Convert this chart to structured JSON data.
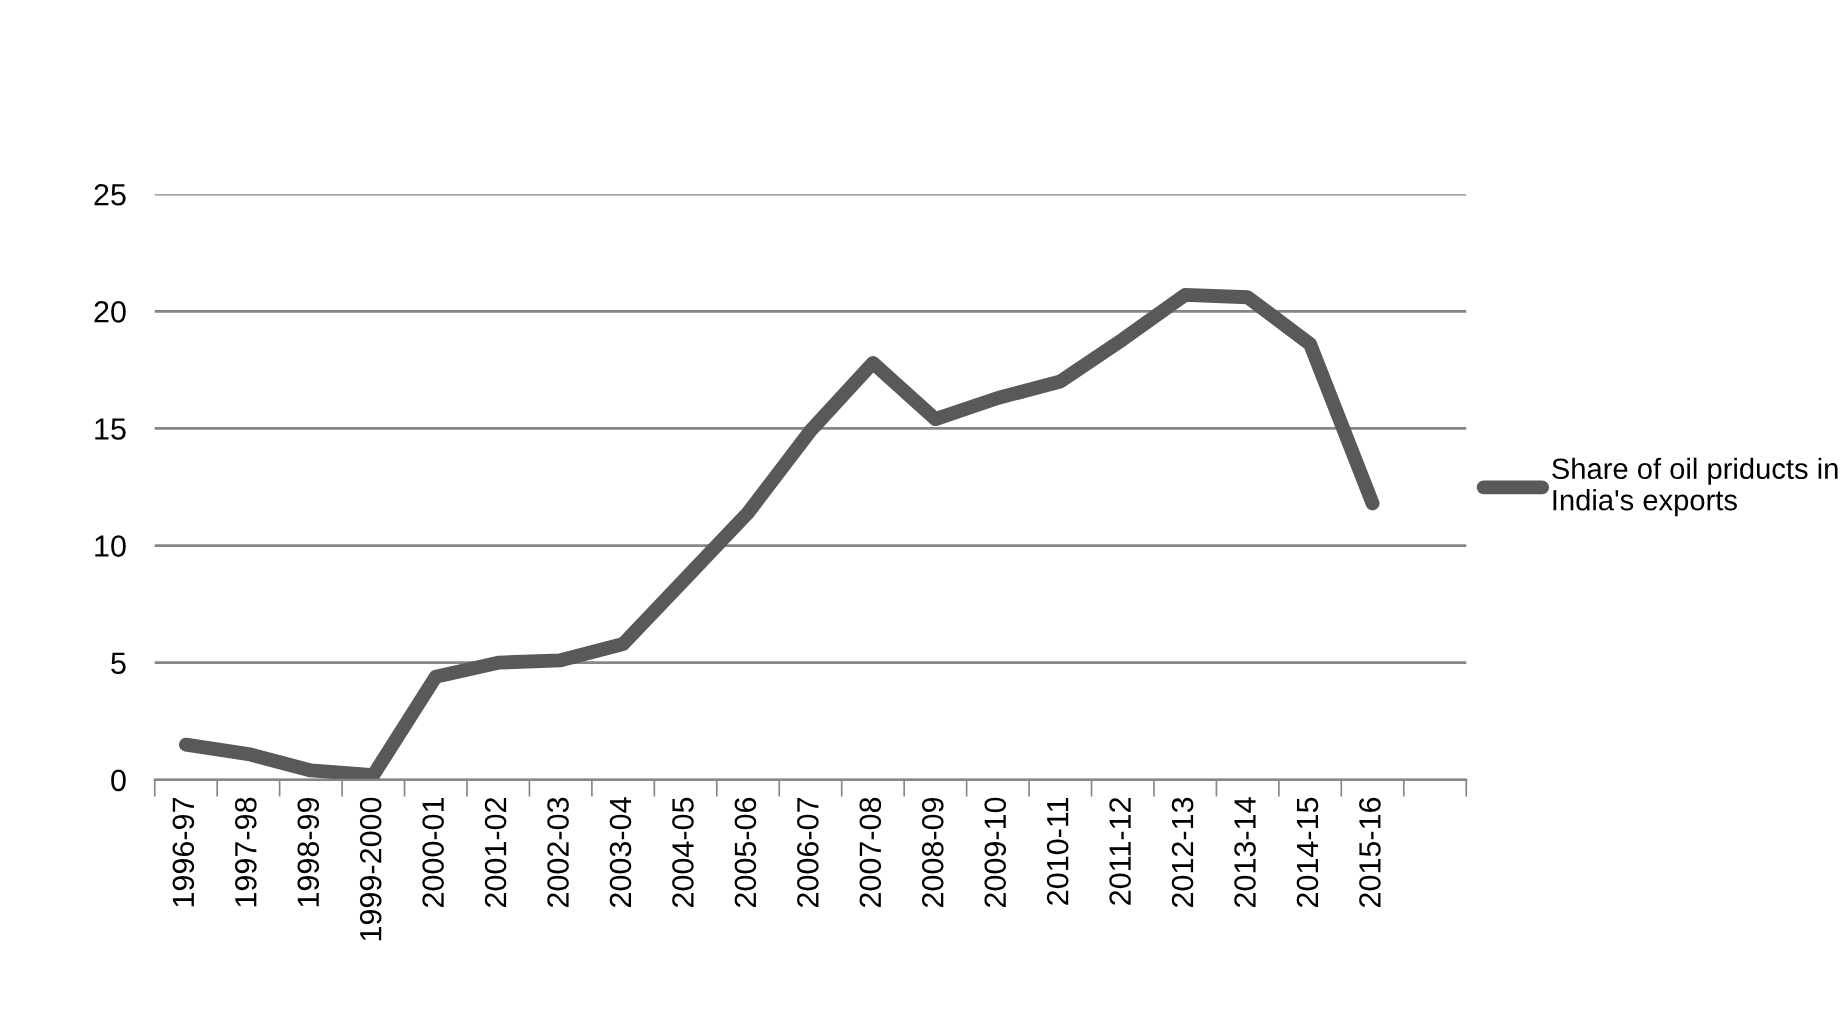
{
  "chart_data": {
    "type": "line",
    "categories": [
      "1996-97",
      "1997-98",
      "1998-99",
      "1999-2000",
      "2000-01",
      "2001-02",
      "2002-03",
      "2003-04",
      "2004-05",
      "2005-06",
      "2006-07",
      "2007-08",
      "2008-09",
      "2009-10",
      "2010-11",
      "2011-12",
      "2012-13",
      "2013-14",
      "2014-15",
      "2015-16",
      null
    ],
    "series": [
      {
        "name": "Share of oil priducts in India's exports",
        "color": "#595959",
        "values": [
          1.5,
          1.1,
          0.4,
          0.2,
          4.4,
          5.0,
          5.1,
          5.8,
          8.6,
          11.4,
          14.9,
          17.8,
          15.4,
          16.3,
          17.0,
          18.8,
          20.7,
          20.6,
          18.6,
          11.8,
          null
        ]
      }
    ],
    "ylim": [
      0,
      25
    ],
    "yticks": [
      0,
      5,
      10,
      15,
      20,
      25
    ],
    "grid": "y",
    "legend": "right",
    "marker": "none",
    "line_style": "solid"
  }
}
